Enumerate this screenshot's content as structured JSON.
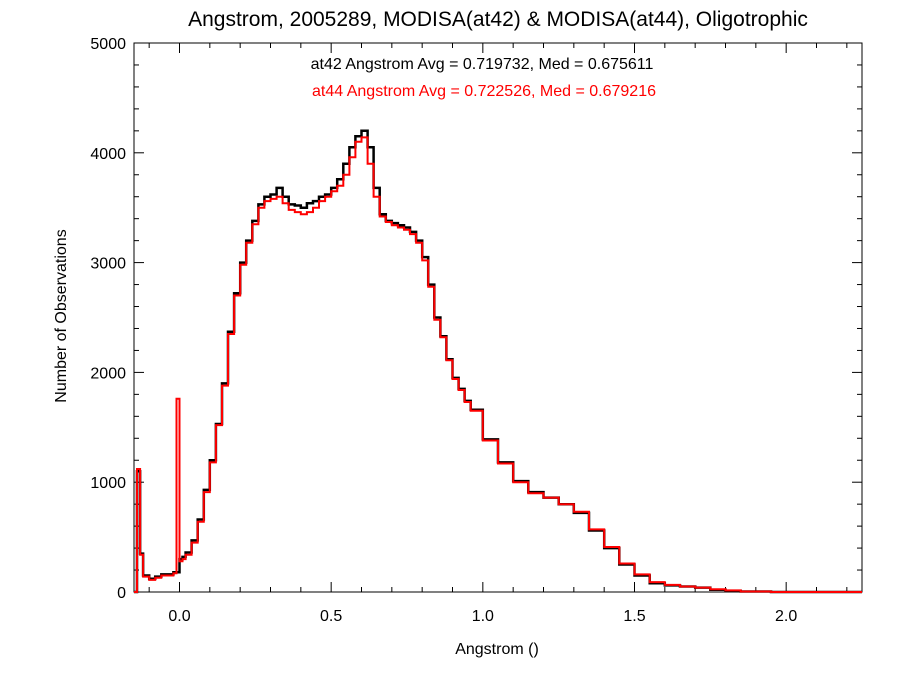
{
  "chart_data": {
    "type": "line",
    "title": "Angstrom, 2005289, MODISA(at42) & MODISA(at44), Oligotrophic",
    "xlabel": "Angstrom ()",
    "ylabel": "Number of Observations",
    "xlim": [
      -0.15,
      2.25
    ],
    "ylim": [
      0,
      5000
    ],
    "x_ticks": [
      0.0,
      0.5,
      1.0,
      1.5,
      2.0
    ],
    "x_tick_labels": [
      "0.0",
      "0.5",
      "1.0",
      "1.5",
      "2.0"
    ],
    "y_ticks": [
      0,
      1000,
      2000,
      3000,
      4000,
      5000
    ],
    "y_tick_labels": [
      "0",
      "1000",
      "2000",
      "3000",
      "4000",
      "5000"
    ],
    "grid": false,
    "annotations": [
      {
        "text": "at42 Angstrom Avg = 0.719732, Med = 0.675611",
        "color": "#000000"
      },
      {
        "text": "at44 Angstrom Avg = 0.722526, Med = 0.679216",
        "color": "#ff0000"
      }
    ],
    "series": [
      {
        "color": "#000000",
        "x": [
          -0.15,
          -0.14,
          -0.13,
          -0.12,
          -0.1,
          -0.08,
          -0.06,
          -0.04,
          -0.02,
          0.0,
          0.01,
          0.02,
          0.04,
          0.06,
          0.08,
          0.1,
          0.12,
          0.14,
          0.16,
          0.18,
          0.2,
          0.22,
          0.24,
          0.26,
          0.28,
          0.3,
          0.32,
          0.34,
          0.36,
          0.38,
          0.4,
          0.42,
          0.44,
          0.46,
          0.48,
          0.5,
          0.52,
          0.54,
          0.56,
          0.58,
          0.6,
          0.62,
          0.64,
          0.66,
          0.68,
          0.7,
          0.72,
          0.74,
          0.76,
          0.78,
          0.8,
          0.82,
          0.84,
          0.86,
          0.88,
          0.9,
          0.92,
          0.94,
          0.96,
          1.0,
          1.05,
          1.1,
          1.15,
          1.2,
          1.25,
          1.3,
          1.35,
          1.4,
          1.45,
          1.5,
          1.55,
          1.6,
          1.65,
          1.7,
          1.75,
          1.8,
          1.85,
          1.9,
          1.95,
          2.0,
          2.05,
          2.1,
          2.15
        ],
        "y": [
          0,
          1100,
          350,
          150,
          120,
          140,
          160,
          160,
          180,
          300,
          320,
          360,
          470,
          660,
          930,
          1200,
          1530,
          1900,
          2370,
          2720,
          3000,
          3200,
          3380,
          3530,
          3600,
          3620,
          3680,
          3600,
          3530,
          3520,
          3500,
          3540,
          3560,
          3600,
          3620,
          3680,
          3760,
          3900,
          4050,
          4150,
          4200,
          4050,
          3680,
          3440,
          3380,
          3360,
          3340,
          3320,
          3280,
          3200,
          3050,
          2800,
          2500,
          2330,
          2120,
          1950,
          1850,
          1740,
          1660,
          1390,
          1180,
          1010,
          910,
          860,
          800,
          720,
          560,
          400,
          250,
          150,
          80,
          60,
          50,
          40,
          20,
          10,
          5,
          5,
          0,
          0,
          0,
          0,
          0
        ]
      },
      {
        "color": "#ff0000",
        "x": [
          -0.15,
          -0.14,
          -0.13,
          -0.12,
          -0.1,
          -0.08,
          -0.06,
          -0.04,
          -0.02,
          -0.01,
          0.0,
          0.01,
          0.02,
          0.04,
          0.06,
          0.08,
          0.1,
          0.12,
          0.14,
          0.16,
          0.18,
          0.2,
          0.22,
          0.24,
          0.26,
          0.28,
          0.3,
          0.32,
          0.34,
          0.36,
          0.38,
          0.4,
          0.42,
          0.44,
          0.46,
          0.48,
          0.5,
          0.52,
          0.54,
          0.56,
          0.58,
          0.6,
          0.62,
          0.64,
          0.66,
          0.68,
          0.7,
          0.72,
          0.74,
          0.76,
          0.78,
          0.8,
          0.82,
          0.84,
          0.86,
          0.88,
          0.9,
          0.92,
          0.94,
          0.96,
          1.0,
          1.05,
          1.1,
          1.15,
          1.2,
          1.25,
          1.3,
          1.35,
          1.4,
          1.45,
          1.5,
          1.55,
          1.6,
          1.65,
          1.7,
          1.75,
          1.8,
          1.85,
          1.9,
          1.95,
          2.0,
          2.05,
          2.1,
          2.15
        ],
        "y": [
          0,
          1120,
          340,
          140,
          110,
          130,
          150,
          150,
          170,
          1760,
          280,
          300,
          340,
          450,
          640,
          910,
          1180,
          1520,
          1880,
          2350,
          2700,
          2980,
          3180,
          3350,
          3500,
          3560,
          3580,
          3600,
          3540,
          3480,
          3460,
          3440,
          3460,
          3500,
          3560,
          3600,
          3650,
          3700,
          3800,
          3960,
          4100,
          4140,
          3900,
          3600,
          3420,
          3370,
          3340,
          3320,
          3300,
          3260,
          3180,
          3020,
          2780,
          2480,
          2320,
          2110,
          1940,
          1840,
          1730,
          1650,
          1380,
          1170,
          1000,
          900,
          860,
          800,
          730,
          570,
          410,
          260,
          160,
          90,
          65,
          50,
          40,
          25,
          15,
          5,
          5,
          0,
          0,
          0,
          0,
          0
        ]
      }
    ]
  }
}
